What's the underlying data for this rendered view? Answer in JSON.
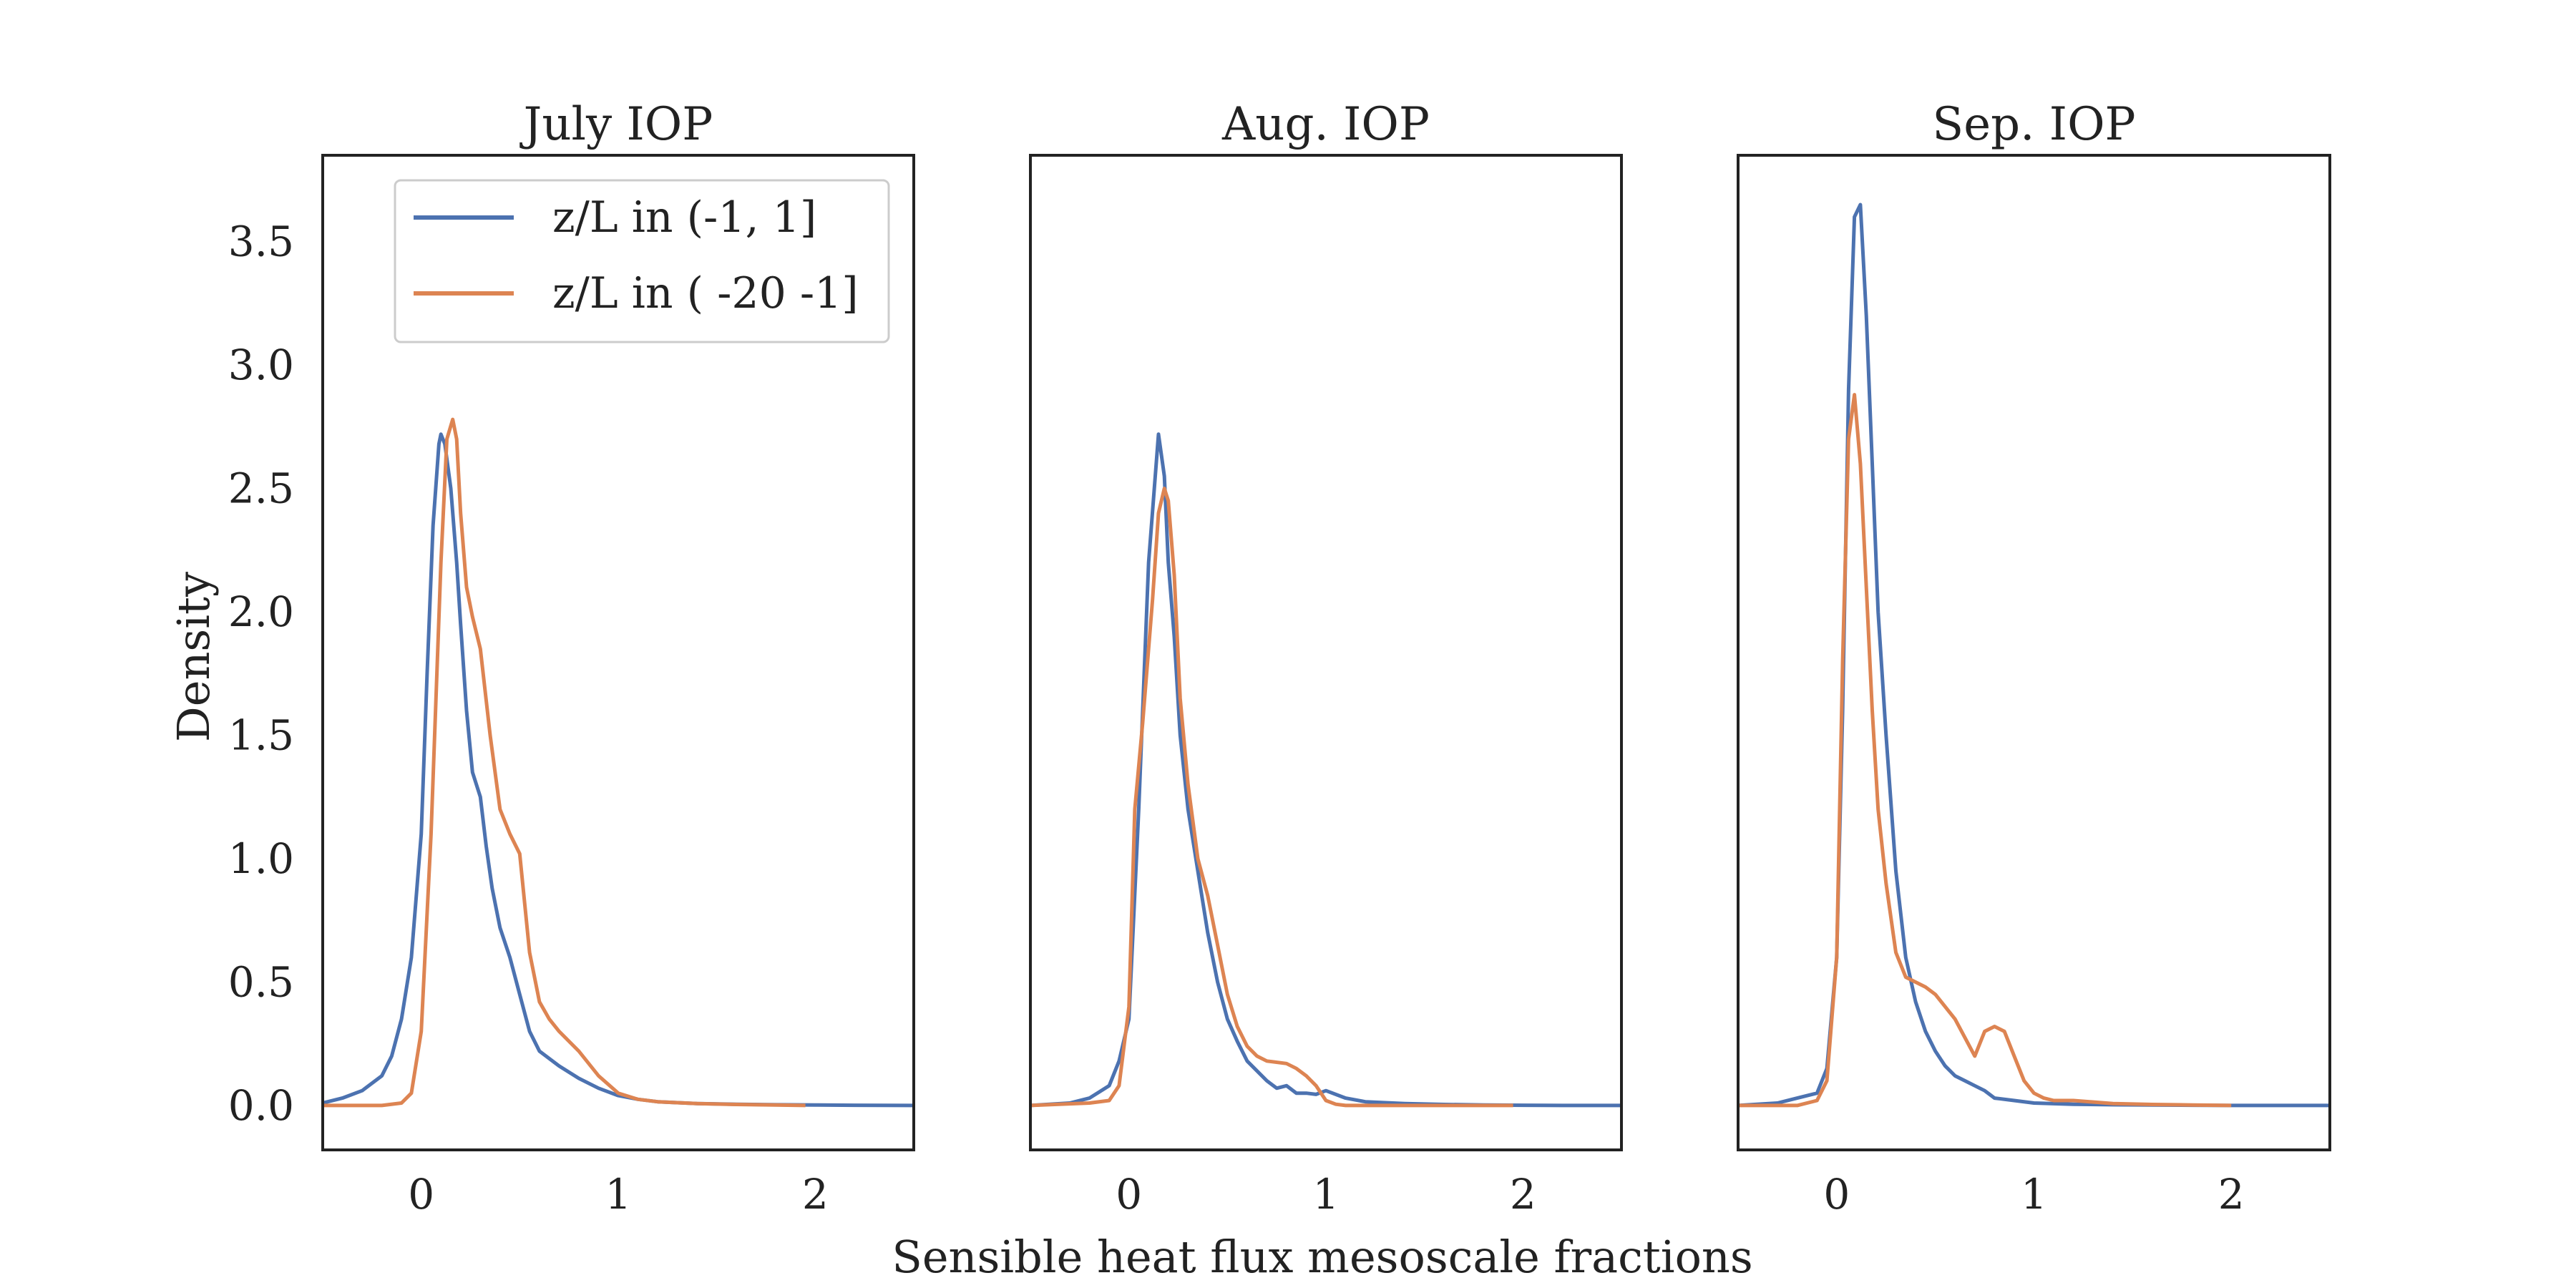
{
  "figure": {
    "xlabel": "Sensible heat flux mesoscale fractions",
    "ylabel": "Density"
  },
  "legend": {
    "placement": "upper-right of first panel",
    "entries": [
      {
        "label": "z/L in (-1, 1]",
        "color": "#4C72B0"
      },
      {
        "label": "z/L in ( -20 -1]",
        "color": "#DD8452"
      }
    ]
  },
  "chart_data": [
    {
      "type": "line",
      "title": "July IOP",
      "xlabel": "",
      "ylabel": "Density",
      "xlim": [
        -0.5,
        2.5
      ],
      "ylim": [
        -0.18,
        3.85
      ],
      "xticks": [
        0,
        1,
        2
      ],
      "yticks": [
        0.0,
        0.5,
        1.0,
        1.5,
        2.0,
        2.5,
        3.0,
        3.5
      ],
      "grid": false,
      "series": [
        {
          "name": "z/L in (-1, 1]",
          "color": "#4C72B0",
          "x": [
            -0.5,
            -0.4,
            -0.3,
            -0.2,
            -0.15,
            -0.1,
            -0.05,
            0.0,
            0.03,
            0.06,
            0.09,
            0.1,
            0.12,
            0.15,
            0.18,
            0.2,
            0.23,
            0.26,
            0.3,
            0.33,
            0.36,
            0.4,
            0.45,
            0.5,
            0.55,
            0.6,
            0.7,
            0.8,
            0.9,
            1.0,
            1.1,
            1.2,
            1.4,
            1.6,
            1.8,
            2.0,
            2.2,
            2.5
          ],
          "y": [
            0.01,
            0.03,
            0.06,
            0.12,
            0.2,
            0.35,
            0.6,
            1.1,
            1.75,
            2.35,
            2.68,
            2.72,
            2.68,
            2.5,
            2.2,
            1.95,
            1.6,
            1.35,
            1.25,
            1.05,
            0.88,
            0.72,
            0.6,
            0.45,
            0.3,
            0.22,
            0.16,
            0.11,
            0.07,
            0.04,
            0.025,
            0.015,
            0.008,
            0.005,
            0.003,
            0.002,
            0.001,
            0.0
          ]
        },
        {
          "name": "z/L in ( -20 -1]",
          "color": "#DD8452",
          "x": [
            -0.5,
            -0.2,
            -0.1,
            -0.05,
            0.0,
            0.05,
            0.1,
            0.13,
            0.16,
            0.18,
            0.2,
            0.23,
            0.26,
            0.3,
            0.35,
            0.4,
            0.45,
            0.5,
            0.55,
            0.6,
            0.65,
            0.7,
            0.8,
            0.9,
            1.0,
            1.1,
            1.2,
            1.4,
            1.6,
            1.8,
            1.95
          ],
          "y": [
            0.0,
            0.0,
            0.01,
            0.05,
            0.3,
            1.1,
            2.2,
            2.7,
            2.78,
            2.7,
            2.4,
            2.1,
            1.98,
            1.85,
            1.5,
            1.2,
            1.1,
            1.02,
            0.62,
            0.42,
            0.35,
            0.3,
            0.22,
            0.12,
            0.05,
            0.025,
            0.015,
            0.008,
            0.004,
            0.002,
            0.0
          ]
        }
      ]
    },
    {
      "type": "line",
      "title": "Aug. IOP",
      "xlabel": "",
      "ylabel": "",
      "xlim": [
        -0.5,
        2.5
      ],
      "ylim": [
        -0.18,
        3.85
      ],
      "xticks": [
        0,
        1,
        2
      ],
      "yticks": [],
      "grid": false,
      "series": [
        {
          "name": "z/L in (-1, 1]",
          "color": "#4C72B0",
          "x": [
            -0.5,
            -0.3,
            -0.2,
            -0.1,
            -0.05,
            0.0,
            0.05,
            0.1,
            0.15,
            0.18,
            0.2,
            0.23,
            0.26,
            0.3,
            0.35,
            0.4,
            0.45,
            0.5,
            0.55,
            0.6,
            0.7,
            0.75,
            0.8,
            0.85,
            0.9,
            0.95,
            1.0,
            1.1,
            1.2,
            1.4,
            1.6,
            1.8,
            2.0,
            2.2,
            2.5
          ],
          "y": [
            0.0,
            0.01,
            0.03,
            0.08,
            0.18,
            0.35,
            1.2,
            2.2,
            2.72,
            2.55,
            2.2,
            1.9,
            1.5,
            1.2,
            0.95,
            0.7,
            0.5,
            0.35,
            0.26,
            0.18,
            0.1,
            0.07,
            0.08,
            0.05,
            0.05,
            0.045,
            0.06,
            0.03,
            0.015,
            0.008,
            0.004,
            0.002,
            0.001,
            0.0,
            0.0
          ]
        },
        {
          "name": "z/L in ( -20 -1]",
          "color": "#DD8452",
          "x": [
            -0.5,
            -0.2,
            -0.1,
            -0.05,
            0.0,
            0.03,
            0.07,
            0.12,
            0.15,
            0.18,
            0.2,
            0.23,
            0.26,
            0.3,
            0.35,
            0.4,
            0.45,
            0.5,
            0.55,
            0.6,
            0.65,
            0.7,
            0.8,
            0.85,
            0.9,
            0.95,
            1.0,
            1.05,
            1.1,
            1.2,
            1.5,
            1.95
          ],
          "y": [
            0.0,
            0.01,
            0.02,
            0.08,
            0.4,
            1.2,
            1.55,
            2.05,
            2.4,
            2.5,
            2.45,
            2.15,
            1.65,
            1.3,
            1.0,
            0.85,
            0.65,
            0.45,
            0.32,
            0.24,
            0.2,
            0.18,
            0.17,
            0.15,
            0.12,
            0.08,
            0.02,
            0.005,
            0.0,
            0.0,
            0.0,
            0.0
          ]
        }
      ]
    },
    {
      "type": "line",
      "title": "Sep. IOP",
      "xlabel": "",
      "ylabel": "",
      "xlim": [
        -0.5,
        2.5
      ],
      "ylim": [
        -0.18,
        3.85
      ],
      "xticks": [
        0,
        1,
        2
      ],
      "yticks": [],
      "grid": false,
      "series": [
        {
          "name": "z/L in (-1, 1]",
          "color": "#4C72B0",
          "x": [
            -0.5,
            -0.3,
            -0.2,
            -0.1,
            -0.05,
            0.0,
            0.03,
            0.06,
            0.09,
            0.12,
            0.15,
            0.18,
            0.21,
            0.25,
            0.3,
            0.35,
            0.4,
            0.45,
            0.5,
            0.55,
            0.6,
            0.65,
            0.7,
            0.75,
            0.8,
            0.9,
            1.0,
            1.2,
            1.4,
            1.6,
            1.8,
            2.0,
            2.2,
            2.5
          ],
          "y": [
            0.0,
            0.01,
            0.03,
            0.05,
            0.15,
            0.6,
            1.6,
            2.9,
            3.6,
            3.65,
            3.2,
            2.6,
            2.0,
            1.5,
            0.95,
            0.6,
            0.42,
            0.3,
            0.22,
            0.16,
            0.12,
            0.1,
            0.08,
            0.06,
            0.03,
            0.02,
            0.01,
            0.005,
            0.003,
            0.002,
            0.001,
            0.0,
            0.0,
            0.0
          ]
        },
        {
          "name": "z/L in ( -20 -1]",
          "color": "#DD8452",
          "x": [
            -0.5,
            -0.2,
            -0.1,
            -0.05,
            0.0,
            0.03,
            0.06,
            0.09,
            0.12,
            0.15,
            0.18,
            0.21,
            0.25,
            0.3,
            0.35,
            0.4,
            0.45,
            0.5,
            0.6,
            0.7,
            0.75,
            0.8,
            0.85,
            0.9,
            0.95,
            1.0,
            1.05,
            1.1,
            1.2,
            1.4,
            1.6,
            1.8,
            2.0
          ],
          "y": [
            0.0,
            0.0,
            0.02,
            0.1,
            0.6,
            1.8,
            2.7,
            2.88,
            2.6,
            2.1,
            1.6,
            1.2,
            0.9,
            0.62,
            0.52,
            0.5,
            0.48,
            0.45,
            0.35,
            0.2,
            0.3,
            0.32,
            0.3,
            0.2,
            0.1,
            0.05,
            0.03,
            0.02,
            0.02,
            0.008,
            0.004,
            0.002,
            0.0
          ]
        }
      ]
    }
  ]
}
